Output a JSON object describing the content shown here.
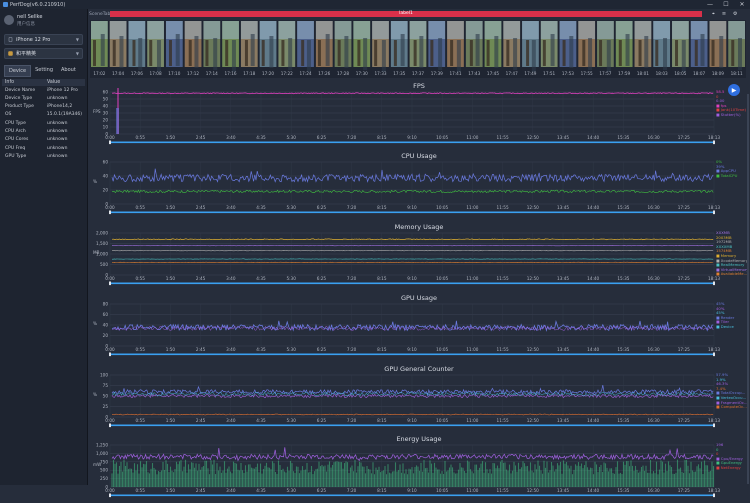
{
  "window": {
    "title": "PerfDog(v6.0.210910)",
    "controls": [
      "—",
      "☐",
      "✕"
    ]
  },
  "sidebar": {
    "user": {
      "name": "nell Sellke",
      "subtitle": "用户信息"
    },
    "device_select": "iPhone 12 Pro",
    "app_select": "和平精英",
    "tabs": [
      {
        "label": "Device",
        "active": true
      },
      {
        "label": "Setting",
        "active": false
      },
      {
        "label": "About",
        "active": false
      }
    ],
    "info_header": {
      "key": "Info",
      "value": "Value"
    },
    "info_rows": [
      {
        "key": "Device Name",
        "value": "iPhone 12 Pro"
      },
      {
        "key": "Device Type",
        "value": "unknown"
      },
      {
        "key": "Product Type",
        "value": "iPhone14,2"
      },
      {
        "key": "OS",
        "value": "15.0.1(19A346)"
      },
      {
        "key": "CPU Type",
        "value": "unknown"
      },
      {
        "key": "CPU Arch",
        "value": "unknown"
      },
      {
        "key": "CPU Cores",
        "value": "unknown"
      },
      {
        "key": "CPU Freq",
        "value": "unknown"
      },
      {
        "key": "GPU Type",
        "value": "unknown"
      }
    ]
  },
  "scene": {
    "label": "SceneTab",
    "tag": "label1"
  },
  "thumb_times": [
    "17:02",
    "17:04",
    "17:06",
    "17:08",
    "17:10",
    "17:12",
    "17:14",
    "17:16",
    "17:18",
    "17:20",
    "17:22",
    "17:24",
    "17:26",
    "17:28",
    "17:30",
    "17:33",
    "17:35",
    "17:37",
    "17:39",
    "17:41",
    "17:43",
    "17:45",
    "17:47",
    "17:49",
    "17:51",
    "17:53",
    "17:55",
    "17:57",
    "17:59",
    "18:01",
    "18:03",
    "18:05",
    "18:07",
    "18:09",
    "18:11"
  ],
  "x_ticks": [
    "0:00",
    "0:55",
    "1:50",
    "2:45",
    "3:40",
    "4:35",
    "5:30",
    "6:25",
    "7:20",
    "8:15",
    "9:10",
    "10:05",
    "11:00",
    "11:55",
    "12:50",
    "13:45",
    "14:40",
    "15:35",
    "16:30",
    "17:25",
    "18:13"
  ],
  "charts": [
    {
      "title": "FPS",
      "y_ticks": [
        "0",
        "10",
        "20",
        "30",
        "40",
        "50",
        "60"
      ],
      "y_label": "FPS",
      "legend": [
        {
          "text": "58.5",
          "color": "#e040c0"
        },
        {
          "text": "0",
          "color": "#e04040"
        },
        {
          "text": "0.00",
          "color": "#a060e0"
        },
        {
          "text": "■ fps",
          "color": "#e040c0"
        },
        {
          "text": "■ Jank(10Time)",
          "color": "#e04040"
        },
        {
          "text": "■ Stutter(%)",
          "color": "#a060e0"
        }
      ]
    },
    {
      "title": "CPU Usage",
      "y_ticks": [
        "0",
        "20",
        "40",
        "60"
      ],
      "y_label": "%",
      "legend": [
        {
          "text": "0%",
          "color": "#40c040"
        },
        {
          "text": "39%",
          "color": "#6a7ae0"
        },
        {
          "text": "■ AppCPU",
          "color": "#6a7ae0"
        },
        {
          "text": "■ TotalCPU",
          "color": "#40c040"
        }
      ]
    },
    {
      "title": "Memory Usage",
      "y_ticks": [
        "0",
        "500",
        "1,000",
        "1,500",
        "2,000"
      ],
      "y_label": "MB",
      "legend": [
        {
          "text": "XXXMB",
          "color": "#a070e0"
        },
        {
          "text": "2003MB",
          "color": "#e0b030"
        },
        {
          "text": "1972MB",
          "color": "#b0b0b0"
        },
        {
          "text": "XXXXMB",
          "color": "#4ac0c0"
        },
        {
          "text": "1574MB",
          "color": "#e08030"
        },
        {
          "text": "■ Memory",
          "color": "#e0b030"
        },
        {
          "text": "■ XcodeMemory",
          "color": "#b0b0b0"
        },
        {
          "text": "■ RealMemory",
          "color": "#4ac0c0"
        },
        {
          "text": "■ VirtualMemory",
          "color": "#a070e0"
        },
        {
          "text": "■ AvailableMe...",
          "color": "#e08030"
        }
      ]
    },
    {
      "title": "GPU Usage",
      "y_ticks": [
        "0",
        "20",
        "40",
        "60",
        "80"
      ],
      "y_label": "%",
      "legend": [
        {
          "text": "45%",
          "color": "#6a7ae0"
        },
        {
          "text": "40%",
          "color": "#a060e0"
        },
        {
          "text": "45%",
          "color": "#4ac0e0"
        },
        {
          "text": "■ Render",
          "color": "#6a7ae0"
        },
        {
          "text": "■ Tiler",
          "color": "#a060e0"
        },
        {
          "text": "■ Device",
          "color": "#4ac0e0"
        }
      ]
    },
    {
      "title": "GPU General Counter",
      "y_ticks": [
        "0",
        "25",
        "50",
        "75",
        "100"
      ],
      "y_label": "%",
      "legend": [
        {
          "text": "57.9%",
          "color": "#6a7ae0"
        },
        {
          "text": "1.9%",
          "color": "#4ac0e0"
        },
        {
          "text": "46.3%",
          "color": "#a060e0"
        },
        {
          "text": "7.4%",
          "color": "#e07030"
        },
        {
          "text": "■ TotalOccup...",
          "color": "#6a7ae0"
        },
        {
          "text": "■ VertexOccu...",
          "color": "#4ac0e0"
        },
        {
          "text": "■ FragmentOc...",
          "color": "#a060e0"
        },
        {
          "text": "■ ComputeOc...",
          "color": "#e07030"
        }
      ]
    },
    {
      "title": "Energy Usage",
      "y_ticks": [
        "0",
        "250",
        "500",
        "750",
        "1,000",
        "1,250"
      ],
      "y_label": "mW",
      "legend": [
        {
          "text": "196",
          "color": "#a060e0"
        },
        {
          "text": "0",
          "color": "#40c080"
        },
        {
          "text": "0",
          "color": "#e04040"
        },
        {
          "text": "■ Cpu/Energy",
          "color": "#a060e0"
        },
        {
          "text": "■ GpuEnergy",
          "color": "#40c080"
        },
        {
          "text": "■ NetEnergy",
          "color": "#e04040"
        }
      ]
    }
  ],
  "colors": {
    "accent": "#2f6fe0",
    "scene_bar": "#d9304a",
    "timeline": "#3aa0f0"
  }
}
